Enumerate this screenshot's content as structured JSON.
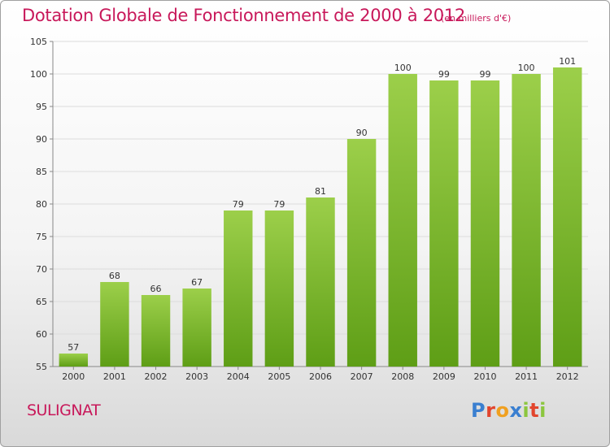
{
  "header": {
    "title": "Dotation Globale de Fonctionnement de 2000 à 2012",
    "subtitle": "(en milliers d'€)"
  },
  "footer": {
    "commune": "SULIGNAT",
    "logo_letters": [
      {
        "ch": "P",
        "color": "#3a7fd0"
      },
      {
        "ch": "r",
        "color": "#e2452d"
      },
      {
        "ch": "o",
        "color": "#f0a020"
      },
      {
        "ch": "x",
        "color": "#3a7fd0"
      },
      {
        "ch": "i",
        "color": "#8cc63e"
      },
      {
        "ch": "t",
        "color": "#e2452d"
      },
      {
        "ch": "i",
        "color": "#8cc63e"
      }
    ]
  },
  "chart_data": {
    "type": "bar",
    "title": "Dotation Globale de Fonctionnement de 2000 à 2012",
    "subtitle": "(en milliers d'€)",
    "categories": [
      "2000",
      "2001",
      "2002",
      "2003",
      "2004",
      "2005",
      "2006",
      "2007",
      "2008",
      "2009",
      "2010",
      "2011",
      "2012"
    ],
    "values": [
      57,
      68,
      66,
      67,
      79,
      79,
      81,
      90,
      100,
      99,
      99,
      100,
      101
    ],
    "ylim": [
      55,
      105
    ],
    "yticks": [
      55,
      60,
      65,
      70,
      75,
      80,
      85,
      90,
      95,
      100,
      105
    ],
    "grid": true,
    "bar_color_top": "#9ccf4a",
    "bar_color_bottom": "#5e9e16",
    "grid_color": "#dcdcdc",
    "title_color": "#c8185a"
  }
}
